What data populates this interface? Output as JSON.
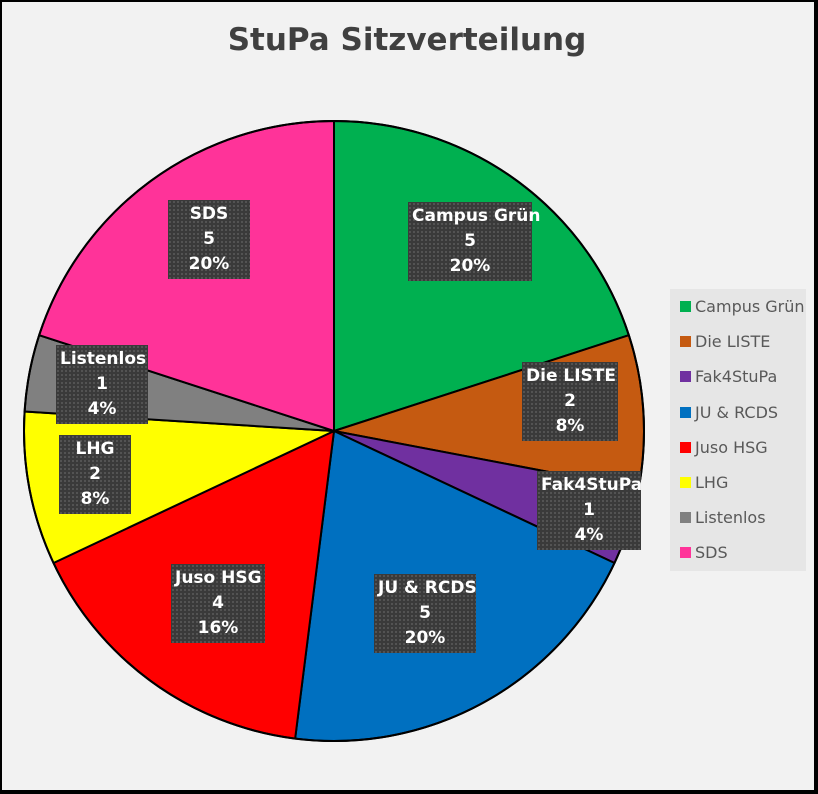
{
  "chart_data": {
    "type": "pie",
    "title": "StuPa Sitzverteilung",
    "legend_position": "right",
    "slices": [
      {
        "name": "Campus Grün",
        "value": 5,
        "percent": "20%",
        "color": "#00b050"
      },
      {
        "name": "Die LISTE",
        "value": 2,
        "percent": "8%",
        "color": "#c55a11"
      },
      {
        "name": "Fak4StuPa",
        "value": 1,
        "percent": "4%",
        "color": "#7030a0"
      },
      {
        "name": "JU & RCDS",
        "value": 5,
        "percent": "20%",
        "color": "#0070c0"
      },
      {
        "name": "Juso HSG",
        "value": 4,
        "percent": "16%",
        "color": "#ff0000"
      },
      {
        "name": "LHG",
        "value": 2,
        "percent": "8%",
        "color": "#ffff00"
      },
      {
        "name": "Listenlos",
        "value": 1,
        "percent": "4%",
        "color": "#808080"
      },
      {
        "name": "SDS",
        "value": 5,
        "percent": "20%",
        "color": "#ff3399"
      }
    ]
  }
}
